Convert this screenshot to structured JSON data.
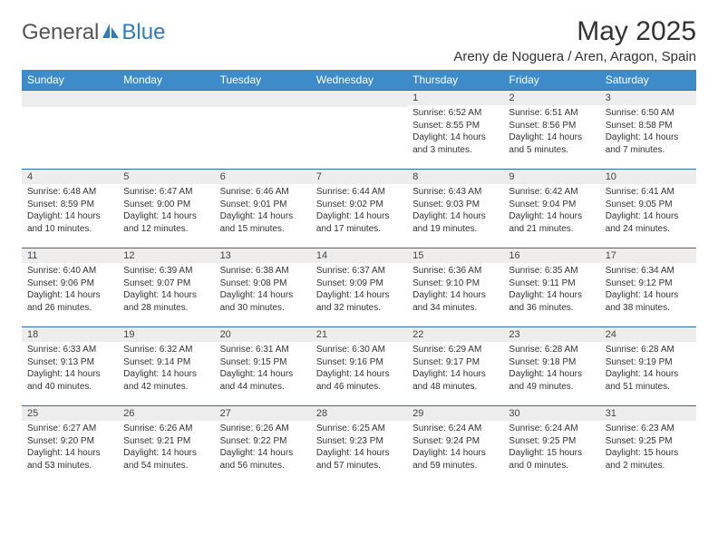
{
  "brand": {
    "part1": "General",
    "part2": "Blue"
  },
  "title": "May 2025",
  "location": "Areny de Noguera / Aren, Aragon, Spain",
  "colors": {
    "header_bg": "#3d8bc8",
    "header_text": "#ffffff",
    "row_border": "#2e6da4",
    "daynum_bg": "#ededed",
    "body_text": "#333333",
    "brand_gray": "#555555",
    "brand_blue": "#2e7cc0"
  },
  "days_of_week": [
    "Sunday",
    "Monday",
    "Tuesday",
    "Wednesday",
    "Thursday",
    "Friday",
    "Saturday"
  ],
  "weeks": [
    [
      {
        "n": "",
        "sr": "",
        "ss": "",
        "dl": ""
      },
      {
        "n": "",
        "sr": "",
        "ss": "",
        "dl": ""
      },
      {
        "n": "",
        "sr": "",
        "ss": "",
        "dl": ""
      },
      {
        "n": "",
        "sr": "",
        "ss": "",
        "dl": ""
      },
      {
        "n": "1",
        "sr": "Sunrise: 6:52 AM",
        "ss": "Sunset: 8:55 PM",
        "dl": "Daylight: 14 hours and 3 minutes."
      },
      {
        "n": "2",
        "sr": "Sunrise: 6:51 AM",
        "ss": "Sunset: 8:56 PM",
        "dl": "Daylight: 14 hours and 5 minutes."
      },
      {
        "n": "3",
        "sr": "Sunrise: 6:50 AM",
        "ss": "Sunset: 8:58 PM",
        "dl": "Daylight: 14 hours and 7 minutes."
      }
    ],
    [
      {
        "n": "4",
        "sr": "Sunrise: 6:48 AM",
        "ss": "Sunset: 8:59 PM",
        "dl": "Daylight: 14 hours and 10 minutes."
      },
      {
        "n": "5",
        "sr": "Sunrise: 6:47 AM",
        "ss": "Sunset: 9:00 PM",
        "dl": "Daylight: 14 hours and 12 minutes."
      },
      {
        "n": "6",
        "sr": "Sunrise: 6:46 AM",
        "ss": "Sunset: 9:01 PM",
        "dl": "Daylight: 14 hours and 15 minutes."
      },
      {
        "n": "7",
        "sr": "Sunrise: 6:44 AM",
        "ss": "Sunset: 9:02 PM",
        "dl": "Daylight: 14 hours and 17 minutes."
      },
      {
        "n": "8",
        "sr": "Sunrise: 6:43 AM",
        "ss": "Sunset: 9:03 PM",
        "dl": "Daylight: 14 hours and 19 minutes."
      },
      {
        "n": "9",
        "sr": "Sunrise: 6:42 AM",
        "ss": "Sunset: 9:04 PM",
        "dl": "Daylight: 14 hours and 21 minutes."
      },
      {
        "n": "10",
        "sr": "Sunrise: 6:41 AM",
        "ss": "Sunset: 9:05 PM",
        "dl": "Daylight: 14 hours and 24 minutes."
      }
    ],
    [
      {
        "n": "11",
        "sr": "Sunrise: 6:40 AM",
        "ss": "Sunset: 9:06 PM",
        "dl": "Daylight: 14 hours and 26 minutes."
      },
      {
        "n": "12",
        "sr": "Sunrise: 6:39 AM",
        "ss": "Sunset: 9:07 PM",
        "dl": "Daylight: 14 hours and 28 minutes."
      },
      {
        "n": "13",
        "sr": "Sunrise: 6:38 AM",
        "ss": "Sunset: 9:08 PM",
        "dl": "Daylight: 14 hours and 30 minutes."
      },
      {
        "n": "14",
        "sr": "Sunrise: 6:37 AM",
        "ss": "Sunset: 9:09 PM",
        "dl": "Daylight: 14 hours and 32 minutes."
      },
      {
        "n": "15",
        "sr": "Sunrise: 6:36 AM",
        "ss": "Sunset: 9:10 PM",
        "dl": "Daylight: 14 hours and 34 minutes."
      },
      {
        "n": "16",
        "sr": "Sunrise: 6:35 AM",
        "ss": "Sunset: 9:11 PM",
        "dl": "Daylight: 14 hours and 36 minutes."
      },
      {
        "n": "17",
        "sr": "Sunrise: 6:34 AM",
        "ss": "Sunset: 9:12 PM",
        "dl": "Daylight: 14 hours and 38 minutes."
      }
    ],
    [
      {
        "n": "18",
        "sr": "Sunrise: 6:33 AM",
        "ss": "Sunset: 9:13 PM",
        "dl": "Daylight: 14 hours and 40 minutes."
      },
      {
        "n": "19",
        "sr": "Sunrise: 6:32 AM",
        "ss": "Sunset: 9:14 PM",
        "dl": "Daylight: 14 hours and 42 minutes."
      },
      {
        "n": "20",
        "sr": "Sunrise: 6:31 AM",
        "ss": "Sunset: 9:15 PM",
        "dl": "Daylight: 14 hours and 44 minutes."
      },
      {
        "n": "21",
        "sr": "Sunrise: 6:30 AM",
        "ss": "Sunset: 9:16 PM",
        "dl": "Daylight: 14 hours and 46 minutes."
      },
      {
        "n": "22",
        "sr": "Sunrise: 6:29 AM",
        "ss": "Sunset: 9:17 PM",
        "dl": "Daylight: 14 hours and 48 minutes."
      },
      {
        "n": "23",
        "sr": "Sunrise: 6:28 AM",
        "ss": "Sunset: 9:18 PM",
        "dl": "Daylight: 14 hours and 49 minutes."
      },
      {
        "n": "24",
        "sr": "Sunrise: 6:28 AM",
        "ss": "Sunset: 9:19 PM",
        "dl": "Daylight: 14 hours and 51 minutes."
      }
    ],
    [
      {
        "n": "25",
        "sr": "Sunrise: 6:27 AM",
        "ss": "Sunset: 9:20 PM",
        "dl": "Daylight: 14 hours and 53 minutes."
      },
      {
        "n": "26",
        "sr": "Sunrise: 6:26 AM",
        "ss": "Sunset: 9:21 PM",
        "dl": "Daylight: 14 hours and 54 minutes."
      },
      {
        "n": "27",
        "sr": "Sunrise: 6:26 AM",
        "ss": "Sunset: 9:22 PM",
        "dl": "Daylight: 14 hours and 56 minutes."
      },
      {
        "n": "28",
        "sr": "Sunrise: 6:25 AM",
        "ss": "Sunset: 9:23 PM",
        "dl": "Daylight: 14 hours and 57 minutes."
      },
      {
        "n": "29",
        "sr": "Sunrise: 6:24 AM",
        "ss": "Sunset: 9:24 PM",
        "dl": "Daylight: 14 hours and 59 minutes."
      },
      {
        "n": "30",
        "sr": "Sunrise: 6:24 AM",
        "ss": "Sunset: 9:25 PM",
        "dl": "Daylight: 15 hours and 0 minutes."
      },
      {
        "n": "31",
        "sr": "Sunrise: 6:23 AM",
        "ss": "Sunset: 9:25 PM",
        "dl": "Daylight: 15 hours and 2 minutes."
      }
    ]
  ]
}
